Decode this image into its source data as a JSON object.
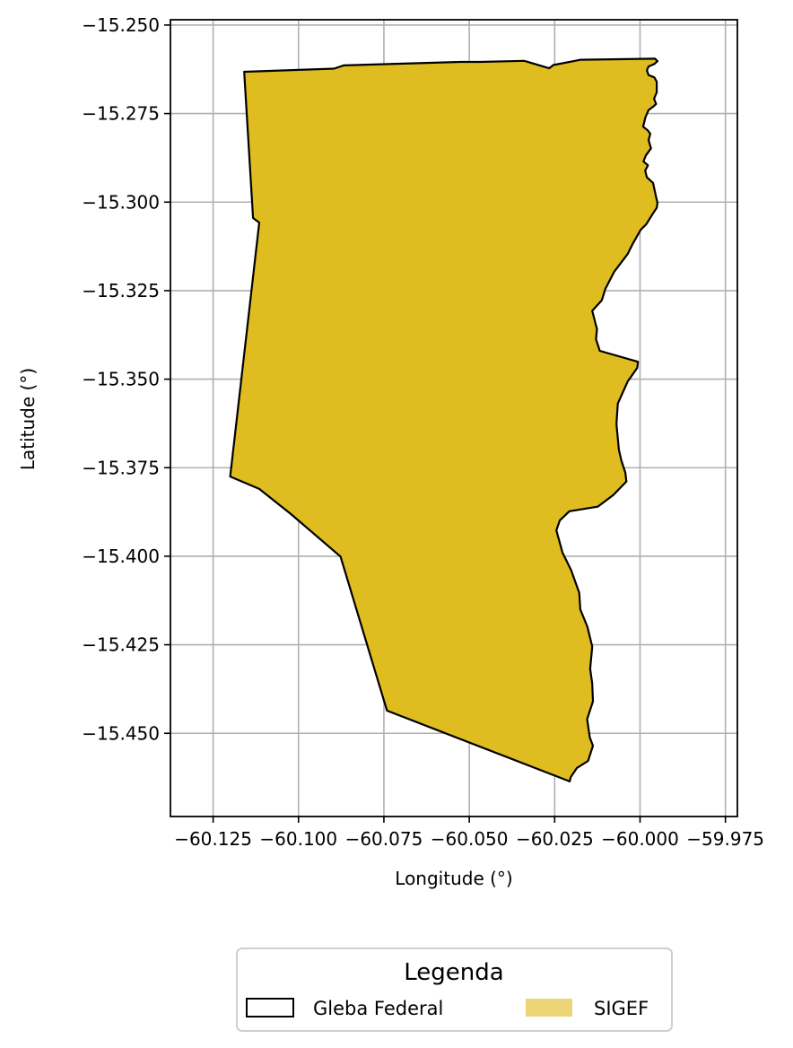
{
  "chart_data": {
    "type": "map",
    "xlabel": "Longitude (°)",
    "ylabel": "Latitude (°)",
    "xlim": [
      -60.1375,
      -59.9715
    ],
    "ylim": [
      -15.4735,
      -15.2485
    ],
    "x_ticks": [
      -60.125,
      -60.1,
      -60.075,
      -60.05,
      -60.025,
      -60.0,
      -59.975
    ],
    "x_tick_labels": [
      "−60.125",
      "−60.100",
      "−60.075",
      "−60.050",
      "−60.025",
      "−60.000",
      "−59.975"
    ],
    "y_ticks": [
      -15.25,
      -15.275,
      -15.3,
      -15.325,
      -15.35,
      -15.375,
      -15.4,
      -15.425,
      -15.45
    ],
    "y_tick_labels": [
      "−15.250",
      "−15.275",
      "−15.300",
      "−15.325",
      "−15.350",
      "−15.375",
      "−15.400",
      "−15.425",
      "−15.450"
    ],
    "grid": true,
    "legend": {
      "title": "Legenda",
      "placement": "bottom-center",
      "entries": [
        {
          "label": "Gleba Federal",
          "style": "outline",
          "color": "#000000"
        },
        {
          "label": "SIGEF",
          "style": "fill",
          "color": "#ebd577"
        }
      ]
    },
    "polygon": {
      "fill_color": "#dfbd20",
      "edge_color": "#000000",
      "coordinates": [
        [
          -60.1159,
          -15.2632
        ],
        [
          -60.0896,
          -15.2623
        ],
        [
          -60.0868,
          -15.2614
        ],
        [
          -60.0525,
          -15.2604
        ],
        [
          -60.0468,
          -15.2604
        ],
        [
          -60.0339,
          -15.2601
        ],
        [
          -60.0266,
          -15.2622
        ],
        [
          -60.0254,
          -15.2613
        ],
        [
          -60.0174,
          -15.2598
        ],
        [
          -59.9956,
          -15.2595
        ],
        [
          -59.9949,
          -15.2602
        ],
        [
          -59.9958,
          -15.261
        ],
        [
          -59.9975,
          -15.2617
        ],
        [
          -59.998,
          -15.2628
        ],
        [
          -59.9975,
          -15.2641
        ],
        [
          -59.9958,
          -15.2648
        ],
        [
          -59.9951,
          -15.266
        ],
        [
          -59.9951,
          -15.269
        ],
        [
          -59.9959,
          -15.2708
        ],
        [
          -59.9953,
          -15.2723
        ],
        [
          -59.9961,
          -15.273
        ],
        [
          -59.9975,
          -15.274
        ],
        [
          -59.9984,
          -15.276
        ],
        [
          -59.9991,
          -15.2787
        ],
        [
          -59.9977,
          -15.2798
        ],
        [
          -59.997,
          -15.2807
        ],
        [
          -59.9975,
          -15.2825
        ],
        [
          -59.9968,
          -15.2848
        ],
        [
          -59.9983,
          -15.2868
        ],
        [
          -59.999,
          -15.2885
        ],
        [
          -59.9977,
          -15.2896
        ],
        [
          -59.9985,
          -15.2911
        ],
        [
          -59.998,
          -15.293
        ],
        [
          -59.9962,
          -15.2946
        ],
        [
          -59.9953,
          -15.2986
        ],
        [
          -59.9949,
          -15.3002
        ],
        [
          -59.9951,
          -15.3016
        ],
        [
          -59.996,
          -15.3029
        ],
        [
          -59.9982,
          -15.3063
        ],
        [
          -59.9998,
          -15.3078
        ],
        [
          -60.0021,
          -15.3117
        ],
        [
          -60.0036,
          -15.3146
        ],
        [
          -60.0076,
          -15.3197
        ],
        [
          -60.0102,
          -15.3246
        ],
        [
          -60.0112,
          -15.3277
        ],
        [
          -60.014,
          -15.3307
        ],
        [
          -60.0126,
          -15.3359
        ],
        [
          -60.0129,
          -15.3387
        ],
        [
          -60.0118,
          -15.342
        ],
        [
          -60.0006,
          -15.3451
        ],
        [
          -60.0008,
          -15.3468
        ],
        [
          -60.0036,
          -15.3506
        ],
        [
          -60.0065,
          -15.3569
        ],
        [
          -60.0069,
          -15.3627
        ],
        [
          -60.0062,
          -15.3699
        ],
        [
          -60.0055,
          -15.3729
        ],
        [
          -60.0043,
          -15.3764
        ],
        [
          -60.004,
          -15.3789
        ],
        [
          -60.0078,
          -15.3827
        ],
        [
          -60.0124,
          -15.386
        ],
        [
          -60.0207,
          -15.3873
        ],
        [
          -60.0235,
          -15.3899
        ],
        [
          -60.0245,
          -15.3927
        ],
        [
          -60.0227,
          -15.399
        ],
        [
          -60.0202,
          -15.4039
        ],
        [
          -60.0178,
          -15.4103
        ],
        [
          -60.0175,
          -15.415
        ],
        [
          -60.0154,
          -15.42
        ],
        [
          -60.014,
          -15.4255
        ],
        [
          -60.0146,
          -15.4318
        ],
        [
          -60.014,
          -15.436
        ],
        [
          -60.0138,
          -15.441
        ],
        [
          -60.0155,
          -15.446
        ],
        [
          -60.0147,
          -15.4512
        ],
        [
          -60.0138,
          -15.4535
        ],
        [
          -60.0152,
          -15.4578
        ],
        [
          -60.0185,
          -15.4598
        ],
        [
          -60.0203,
          -15.4624
        ],
        [
          -60.0206,
          -15.4636
        ],
        [
          -60.0741,
          -15.4436
        ],
        [
          -60.0877,
          -15.4001
        ],
        [
          -60.1022,
          -15.3881
        ],
        [
          -60.1115,
          -15.381
        ],
        [
          -60.12,
          -15.3775
        ],
        [
          -60.1115,
          -15.3058
        ],
        [
          -60.1133,
          -15.3045
        ],
        [
          -60.1159,
          -15.2632
        ]
      ]
    }
  }
}
